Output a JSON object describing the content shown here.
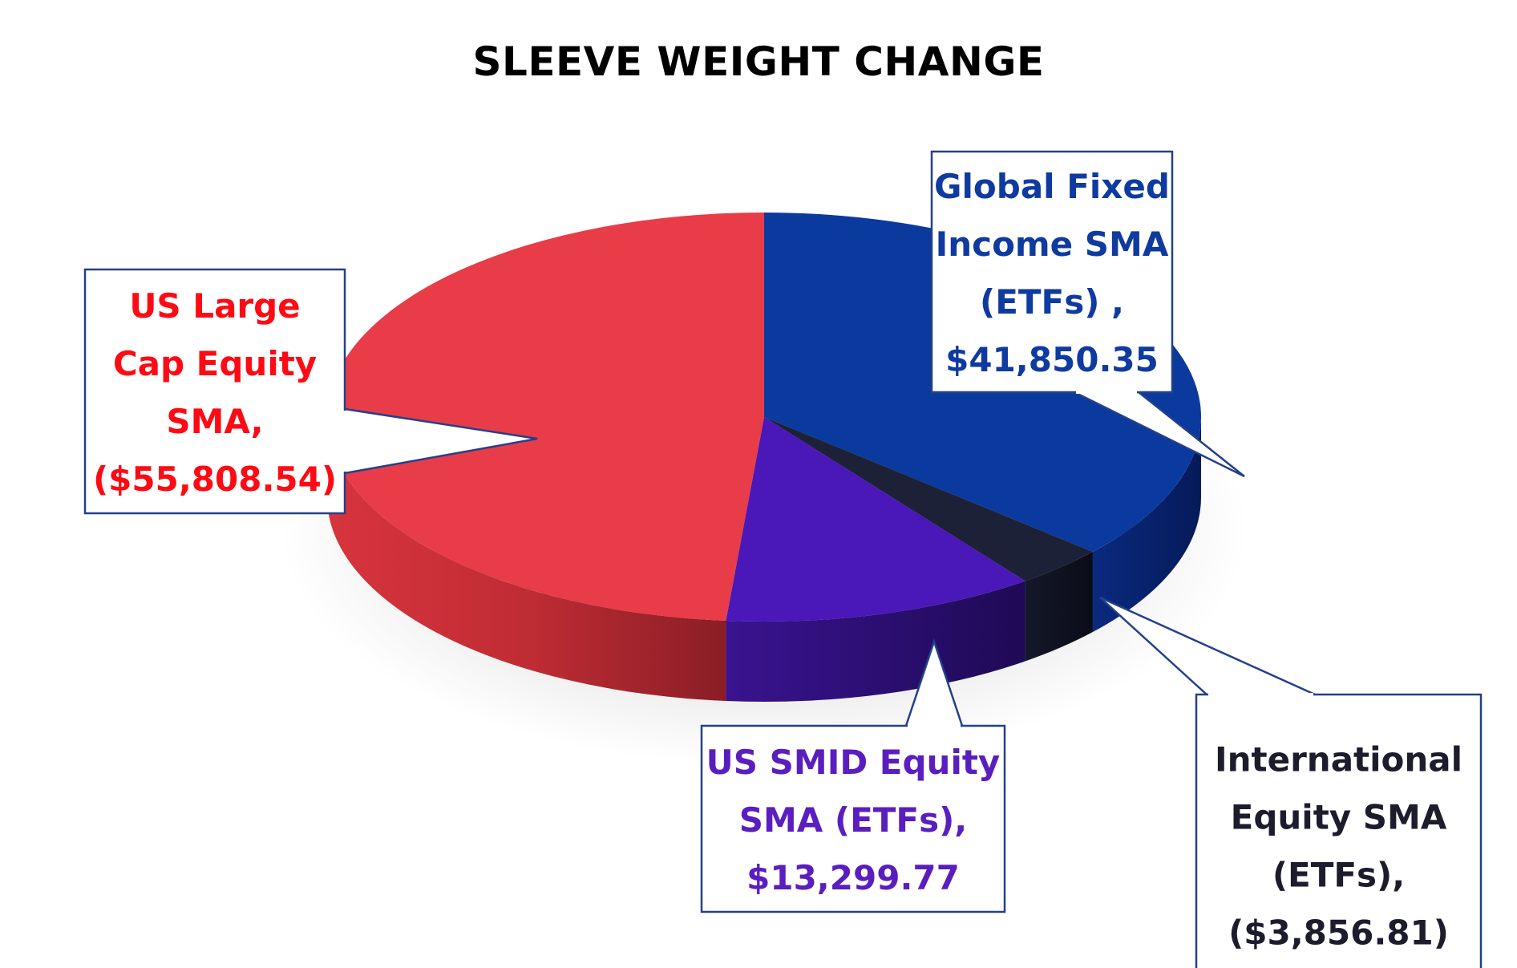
{
  "chart_data": {
    "type": "pie",
    "title": "SLEEVE WEIGHT CHANGE",
    "slices": [
      {
        "label_lines": [
          "Global Fixed",
          "Income SMA",
          "(ETFs) ,",
          "$41,850.35"
        ],
        "category": "Global Fixed Income SMA (ETFs)",
        "value": 41850.35,
        "display_value": "$41,850.35",
        "color": "#0a3a9e"
      },
      {
        "label_lines": [
          "International",
          "Equity SMA",
          "(ETFs),",
          "($3,856.81)"
        ],
        "category": "International Equity SMA (ETFs)",
        "value": -3856.81,
        "display_value": "($3,856.81)",
        "color": "#1c2138"
      },
      {
        "label_lines": [
          "US SMID Equity",
          "SMA (ETFs),",
          "$13,299.77"
        ],
        "category": "US SMID Equity SMA (ETFs)",
        "value": 13299.77,
        "display_value": "$13,299.77",
        "color": "#4a18b8"
      },
      {
        "label_lines": [
          "US Large",
          "Cap Equity",
          "SMA,",
          "($55,808.54)"
        ],
        "category": "US Large Cap Equity SMA",
        "value": -55808.54,
        "display_value": "($55,808.54)",
        "color": "#e83c48"
      }
    ],
    "label_colors": [
      "#0f3aa0",
      "#1c1c2c",
      "#5a1ec0",
      "#ff0a14"
    ],
    "style": "3d-tilted-pie"
  }
}
